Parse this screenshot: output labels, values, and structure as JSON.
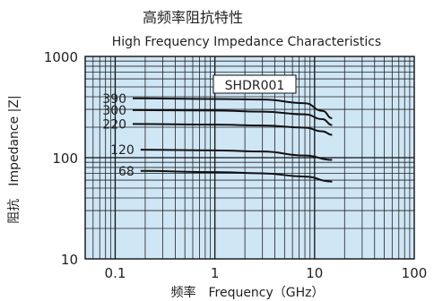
{
  "chart_data": {
    "type": "line",
    "title": "高频率阻抗特性",
    "subtitle": "High Frequency Impedance Characteristics",
    "xlabel": "频率　Frequency（GHz）",
    "ylabel": "阻抗　Impedance |Z|",
    "x_scale": "log",
    "y_scale": "log",
    "xlim": [
      0.05,
      100
    ],
    "ylim": [
      10,
      1000
    ],
    "x_ticks": [
      "0.1",
      "1",
      "10",
      "100"
    ],
    "y_ticks": [
      "10",
      "100",
      "1000"
    ],
    "grid": true,
    "legend_box": "SHDR001",
    "series": [
      {
        "name": "390",
        "x": [
          0.15,
          1,
          3,
          8,
          12,
          15
        ],
        "y": [
          385,
          380,
          375,
          345,
          290,
          245
        ]
      },
      {
        "name": "300",
        "x": [
          0.15,
          1,
          3,
          8,
          12,
          15
        ],
        "y": [
          295,
          292,
          285,
          268,
          240,
          210
        ]
      },
      {
        "name": "220",
        "x": [
          0.15,
          1,
          3,
          8,
          12,
          15
        ],
        "y": [
          215,
          212,
          208,
          198,
          182,
          168
        ]
      },
      {
        "name": "120",
        "x": [
          0.18,
          1,
          3,
          8,
          15
        ],
        "y": [
          120,
          118,
          115,
          105,
          95
        ]
      },
      {
        "name": "68",
        "x": [
          0.18,
          1,
          3,
          8,
          15
        ],
        "y": [
          74,
          72,
          70,
          65,
          58
        ]
      }
    ]
  }
}
